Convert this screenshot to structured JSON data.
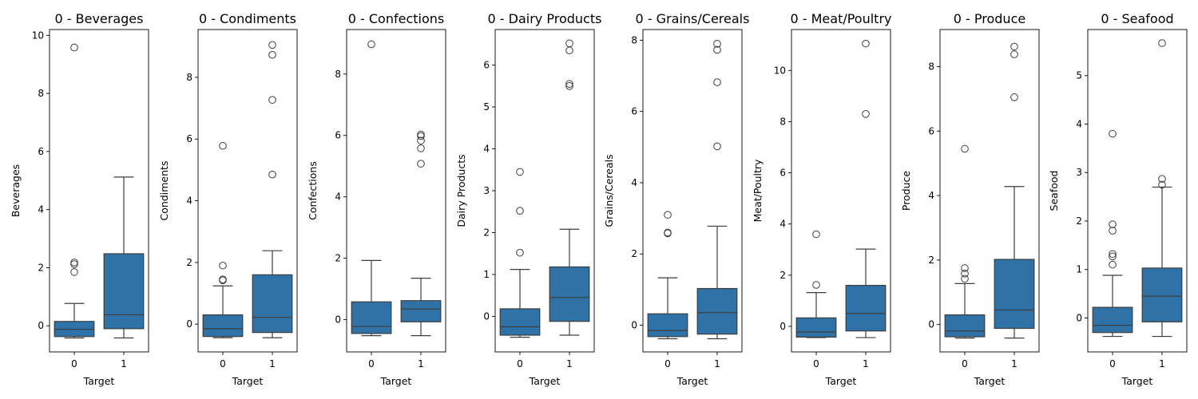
{
  "chart_data": [
    {
      "type": "box",
      "title": "0 - Beverages",
      "xlabel": "Target",
      "ylabel": "Beverages",
      "categories": [
        "0",
        "1"
      ],
      "ylim": [
        -0.9,
        10.2
      ],
      "yticks": [
        0,
        2,
        4,
        6,
        8,
        10
      ],
      "boxes": [
        {
          "whislo": -0.42,
          "q1": -0.37,
          "med": -0.12,
          "q3": 0.15,
          "whishi": 0.77,
          "fliers": [
            1.85,
            2.12,
            2.18,
            9.58
          ]
        },
        {
          "whislo": -0.42,
          "q1": -0.1,
          "med": 0.38,
          "q3": 2.48,
          "whishi": 5.12,
          "fliers": []
        }
      ]
    },
    {
      "type": "box",
      "title": "0 - Condiments",
      "xlabel": "Target",
      "ylabel": "Condiments",
      "categories": [
        "0",
        "1"
      ],
      "ylim": [
        -0.9,
        9.55
      ],
      "yticks": [
        0,
        2,
        4,
        6,
        8
      ],
      "boxes": [
        {
          "whislo": -0.44,
          "q1": -0.4,
          "med": -0.15,
          "q3": 0.3,
          "whishi": 1.24,
          "fliers": [
            1.42,
            1.45,
            1.9,
            5.78
          ]
        },
        {
          "whislo": -0.44,
          "q1": -0.27,
          "med": 0.22,
          "q3": 1.6,
          "whishi": 2.38,
          "fliers": [
            4.85,
            7.27,
            8.73,
            9.05
          ]
        }
      ]
    },
    {
      "type": "box",
      "title": "0 - Confections",
      "xlabel": "Target",
      "ylabel": "Confections",
      "categories": [
        "0",
        "1"
      ],
      "ylim": [
        -1.05,
        9.45
      ],
      "yticks": [
        0,
        2,
        4,
        6,
        8
      ],
      "boxes": [
        {
          "whislo": -0.52,
          "q1": -0.45,
          "med": -0.22,
          "q3": 0.58,
          "whishi": 1.93,
          "fliers": [
            8.97
          ]
        },
        {
          "whislo": -0.52,
          "q1": -0.07,
          "med": 0.35,
          "q3": 0.62,
          "whishi": 1.35,
          "fliers": [
            5.08,
            5.58,
            5.83,
            5.98,
            6.03
          ]
        }
      ]
    },
    {
      "type": "box",
      "title": "0 - Dairy Products",
      "xlabel": "Target",
      "ylabel": "Dairy Products",
      "categories": [
        "0",
        "1"
      ],
      "ylim": [
        -0.85,
        6.85
      ],
      "yticks": [
        0,
        1,
        2,
        3,
        4,
        5,
        6
      ],
      "boxes": [
        {
          "whislo": -0.5,
          "q1": -0.45,
          "med": -0.25,
          "q3": 0.18,
          "whishi": 1.12,
          "fliers": [
            1.52,
            2.52,
            3.45
          ]
        },
        {
          "whislo": -0.45,
          "q1": -0.12,
          "med": 0.45,
          "q3": 1.18,
          "whishi": 2.08,
          "fliers": [
            5.5,
            5.55,
            6.35,
            6.52
          ]
        }
      ]
    },
    {
      "type": "box",
      "title": "0 - Grains/Cereals",
      "xlabel": "Target",
      "ylabel": "Grains/Cereals",
      "categories": [
        "0",
        "1"
      ],
      "ylim": [
        -0.75,
        8.3
      ],
      "yticks": [
        0,
        2,
        4,
        6,
        8
      ],
      "boxes": [
        {
          "whislo": -0.38,
          "q1": -0.32,
          "med": -0.15,
          "q3": 0.32,
          "whishi": 1.33,
          "fliers": [
            2.58,
            2.6,
            3.1
          ]
        },
        {
          "whislo": -0.38,
          "q1": -0.25,
          "med": 0.35,
          "q3": 1.03,
          "whishi": 2.78,
          "fliers": [
            5.02,
            6.82,
            7.73,
            7.9
          ]
        }
      ]
    },
    {
      "type": "box",
      "title": "0 - Meat/Poultry",
      "xlabel": "Target",
      "ylabel": "Meat/Poultry",
      "categories": [
        "0",
        "1"
      ],
      "ylim": [
        -1.0,
        11.6
      ],
      "yticks": [
        0,
        2,
        4,
        6,
        8,
        10
      ],
      "boxes": [
        {
          "whislo": -0.44,
          "q1": -0.42,
          "med": -0.22,
          "q3": 0.33,
          "whishi": 1.32,
          "fliers": [
            1.62,
            3.6
          ]
        },
        {
          "whislo": -0.44,
          "q1": -0.18,
          "med": 0.5,
          "q3": 1.6,
          "whishi": 3.02,
          "fliers": [
            8.3,
            11.05
          ]
        }
      ]
    },
    {
      "type": "box",
      "title": "0 - Produce",
      "xlabel": "Target",
      "ylabel": "Produce",
      "categories": [
        "0",
        "1"
      ],
      "ylim": [
        -0.85,
        9.15
      ],
      "yticks": [
        0,
        2,
        4,
        6,
        8
      ],
      "boxes": [
        {
          "whislo": -0.42,
          "q1": -0.38,
          "med": -0.2,
          "q3": 0.3,
          "whishi": 1.27,
          "fliers": [
            1.42,
            1.58,
            1.75,
            5.45
          ]
        },
        {
          "whislo": -0.42,
          "q1": -0.12,
          "med": 0.45,
          "q3": 2.02,
          "whishi": 4.28,
          "fliers": [
            7.05,
            8.38,
            8.62
          ]
        }
      ]
    },
    {
      "type": "box",
      "title": "0 - Seafood",
      "xlabel": "Target",
      "ylabel": "Seafood",
      "categories": [
        "0",
        "1"
      ],
      "ylim": [
        -0.7,
        5.95
      ],
      "yticks": [
        0,
        1,
        2,
        3,
        4,
        5
      ],
      "boxes": [
        {
          "whislo": -0.38,
          "q1": -0.3,
          "med": -0.15,
          "q3": 0.22,
          "whishi": 0.88,
          "fliers": [
            1.1,
            1.27,
            1.32,
            1.8,
            1.93,
            3.8
          ]
        },
        {
          "whislo": -0.38,
          "q1": -0.08,
          "med": 0.45,
          "q3": 1.03,
          "whishi": 2.7,
          "fliers": [
            2.75,
            2.87,
            5.67
          ]
        }
      ]
    }
  ],
  "colors": {
    "box_fill": "#2e72a7",
    "line": "#3d3d3d",
    "flier_edge": "#3d3d3d"
  }
}
